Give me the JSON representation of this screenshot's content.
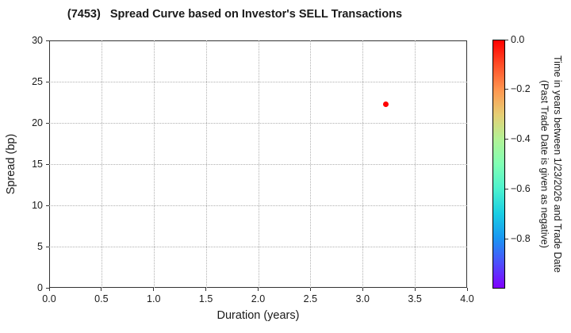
{
  "chart_data": {
    "type": "scatter",
    "title": "(7453)   Spread Curve based on Investor's SELL Transactions",
    "xlabel": "Duration (years)",
    "ylabel": "Spread (bp)",
    "xlim": [
      0.0,
      4.0
    ],
    "ylim": [
      0,
      30
    ],
    "grid": {
      "style": "dotted",
      "color": "#b0b0b0"
    },
    "x_ticks": {
      "values": [
        0.0,
        0.5,
        1.0,
        1.5,
        2.0,
        2.5,
        3.0,
        3.5,
        4.0
      ],
      "labels": [
        "0.0",
        "0.5",
        "1.0",
        "1.5",
        "2.0",
        "2.5",
        "3.0",
        "3.5",
        "4.0"
      ]
    },
    "y_ticks": {
      "values": [
        0,
        5,
        10,
        15,
        20,
        25,
        30
      ],
      "labels": [
        "0",
        "5",
        "10",
        "15",
        "20",
        "25",
        "30"
      ]
    },
    "points": [
      {
        "x": 3.22,
        "y": 22.3,
        "color": "#ff0000",
        "colorbar_value": 0.0,
        "marker_px": 7
      }
    ],
    "colorbar": {
      "colormap": "rainbow",
      "range_top": 0.0,
      "range_bottom": -1.0,
      "ticks": {
        "values": [
          0.0,
          -0.2,
          -0.4,
          -0.6,
          -0.8
        ],
        "labels": [
          "0.0",
          "−0.2",
          "−0.4",
          "−0.6",
          "−0.8"
        ]
      },
      "label_line1": "Time in years between 1/23/2026 and Trade Date",
      "label_line2": "(Past Trade Date is given as negative)",
      "gradient_top_to_bottom": [
        {
          "pos": 0.0,
          "color": "#ff0000"
        },
        {
          "pos": 0.1,
          "color": "#ff4f28"
        },
        {
          "pos": 0.2,
          "color": "#ff9650"
        },
        {
          "pos": 0.3,
          "color": "#e6ce74"
        },
        {
          "pos": 0.4,
          "color": "#b2f296"
        },
        {
          "pos": 0.5,
          "color": "#80ffb4"
        },
        {
          "pos": 0.6,
          "color": "#4df2ce"
        },
        {
          "pos": 0.7,
          "color": "#1acee3"
        },
        {
          "pos": 0.8,
          "color": "#1a96f2"
        },
        {
          "pos": 0.9,
          "color": "#4d4ffc"
        },
        {
          "pos": 1.0,
          "color": "#8000ff"
        }
      ]
    }
  }
}
